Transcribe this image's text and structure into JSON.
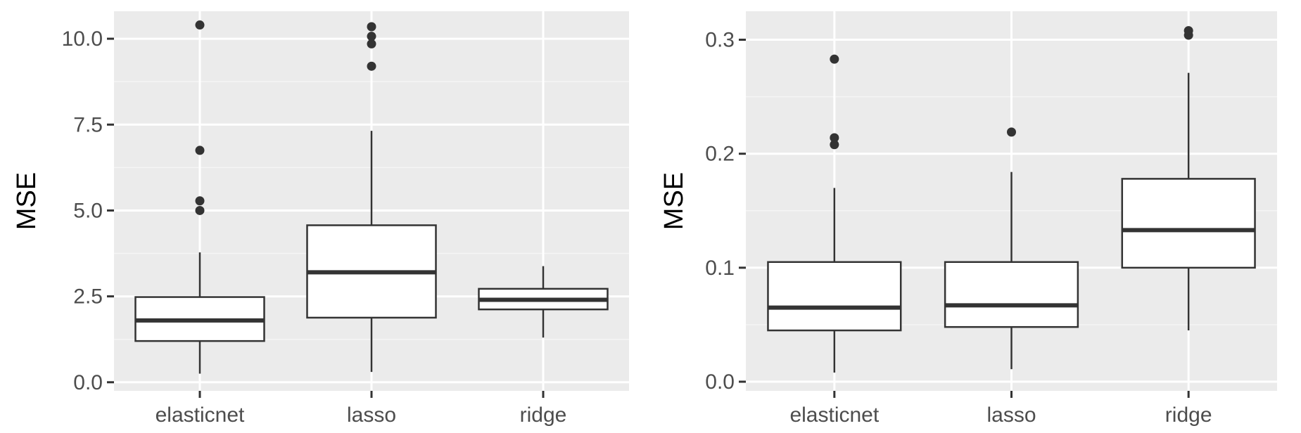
{
  "colors": {
    "panel_background": "#ebebeb",
    "grid_major": "#ffffff",
    "grid_minor": "#f5f5f5",
    "box_fill": "#ffffff",
    "box_stroke": "#333333",
    "outlier": "#333333",
    "tick_label": "#4d4d4d",
    "axis_title": "#000000"
  },
  "chart_data": [
    {
      "type": "boxplot",
      "xlabel": "",
      "ylabel": "MSE",
      "ylim": [
        -0.25,
        10.8
      ],
      "yticks": [
        0.0,
        2.5,
        5.0,
        7.5,
        10.0
      ],
      "ytick_labels": [
        "0.0",
        "2.5",
        "5.0",
        "7.5",
        "10.0"
      ],
      "grid": true,
      "categories": [
        "elasticnet",
        "lasso",
        "ridge"
      ],
      "boxes": [
        {
          "category": "elasticnet",
          "whisker_low": 0.25,
          "q1": 1.2,
          "median": 1.8,
          "q3": 2.48,
          "whisker_high": 3.78,
          "outliers": [
            5.0,
            5.28,
            6.75,
            10.4
          ]
        },
        {
          "category": "lasso",
          "whisker_low": 0.3,
          "q1": 1.88,
          "median": 3.2,
          "q3": 4.57,
          "whisker_high": 7.32,
          "outliers": [
            9.2,
            9.85,
            10.07,
            10.35
          ]
        },
        {
          "category": "ridge",
          "whisker_low": 1.3,
          "q1": 2.12,
          "median": 2.4,
          "q3": 2.72,
          "whisker_high": 3.38,
          "outliers": []
        }
      ]
    },
    {
      "type": "boxplot",
      "xlabel": "",
      "ylabel": "MSE",
      "ylim": [
        -0.008,
        0.325
      ],
      "yticks": [
        0.0,
        0.1,
        0.2,
        0.3
      ],
      "ytick_labels": [
        "0.0",
        "0.1",
        "0.2",
        "0.3"
      ],
      "grid": true,
      "categories": [
        "elasticnet",
        "lasso",
        "ridge"
      ],
      "boxes": [
        {
          "category": "elasticnet",
          "whisker_low": 0.008,
          "q1": 0.045,
          "median": 0.065,
          "q3": 0.105,
          "whisker_high": 0.17,
          "outliers": [
            0.208,
            0.214,
            0.283
          ]
        },
        {
          "category": "lasso",
          "whisker_low": 0.011,
          "q1": 0.048,
          "median": 0.067,
          "q3": 0.105,
          "whisker_high": 0.184,
          "outliers": [
            0.219
          ]
        },
        {
          "category": "ridge",
          "whisker_low": 0.045,
          "q1": 0.1,
          "median": 0.133,
          "q3": 0.178,
          "whisker_high": 0.271,
          "outliers": [
            0.304,
            0.308
          ]
        }
      ]
    }
  ]
}
